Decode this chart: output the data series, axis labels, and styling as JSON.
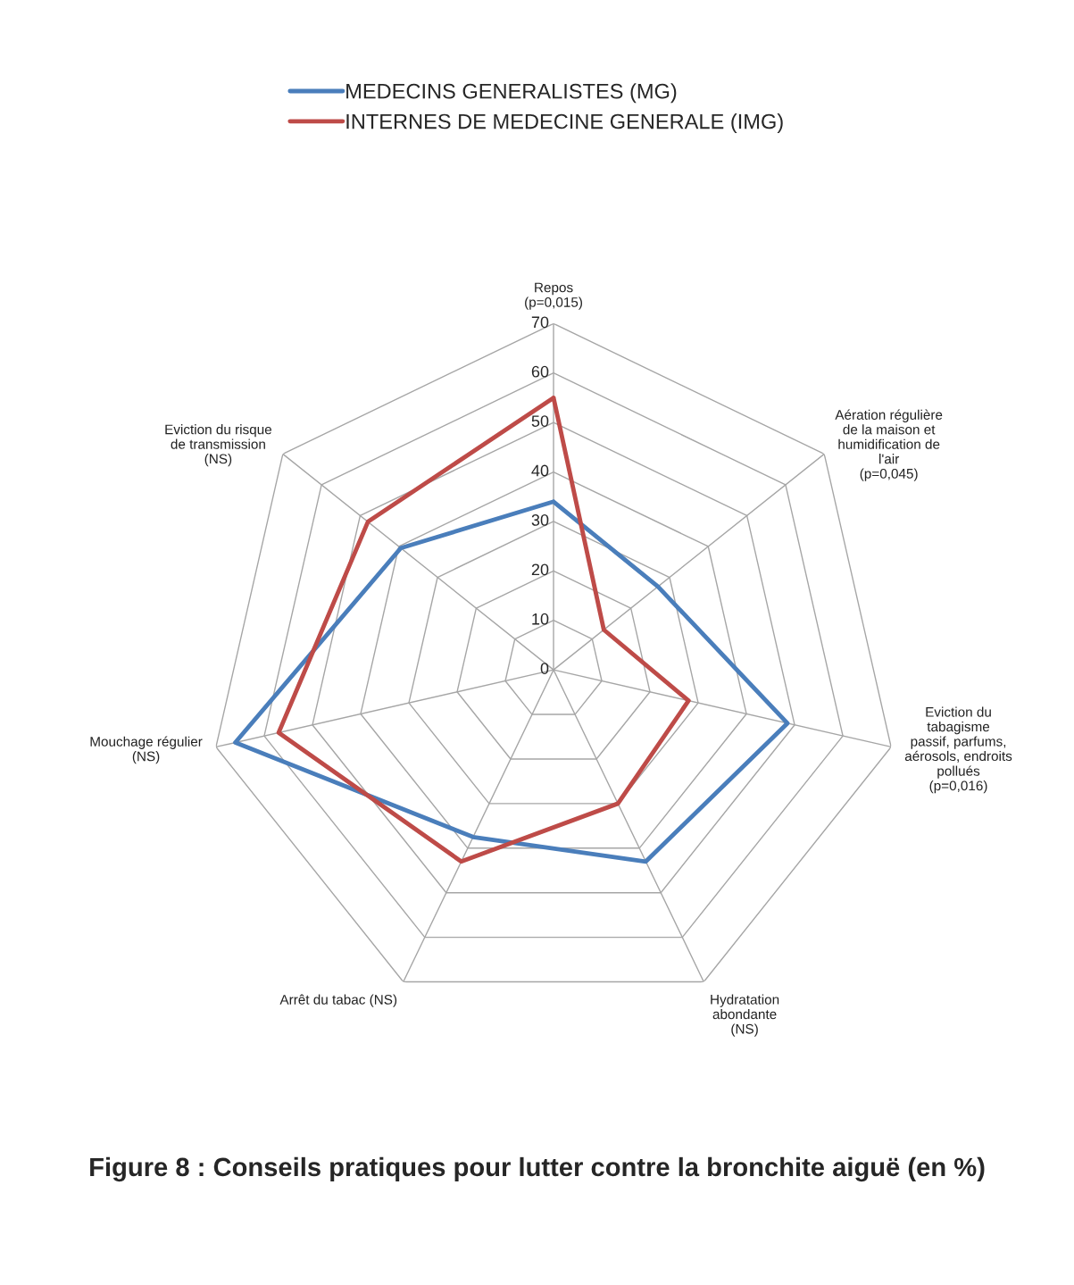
{
  "chart_data": {
    "type": "radar",
    "title": "Figure 8 : Conseils pratiques pour lutter contre la bronchite aiguë (en %)",
    "categories": [
      "Repos\n(p=0,015)",
      "Aération régulière\nde la maison et\nhumidification de\nl'air\n(p=0,045)",
      "Eviction du\ntabagisme\npassif, parfums,\naérosols, endroits\npollués\n(p=0,016)",
      "Hydratation\nabondante\n(NS)",
      "Arrêt du tabac (NS)",
      "Mouchage régulier\n(NS)",
      "Eviction du risque\nde transmission\n(NS)"
    ],
    "series": [
      {
        "name": "MEDECINS GENERALISTES (MG)",
        "color": "#4a7ebb",
        "values": [
          34,
          27,
          48.5,
          43,
          37.5,
          66,
          39.5
        ]
      },
      {
        "name": "INTERNES DE MEDECINE GENERALE (IMG)",
        "color": "#be4b48",
        "values": [
          55,
          13,
          28,
          30,
          43,
          57,
          48
        ]
      }
    ],
    "ylim": [
      0,
      70
    ],
    "yticks": [
      0,
      10,
      20,
      30,
      40,
      50,
      60,
      70
    ],
    "grid": true,
    "legend": "top",
    "marker": "none",
    "line_style": "solid"
  }
}
